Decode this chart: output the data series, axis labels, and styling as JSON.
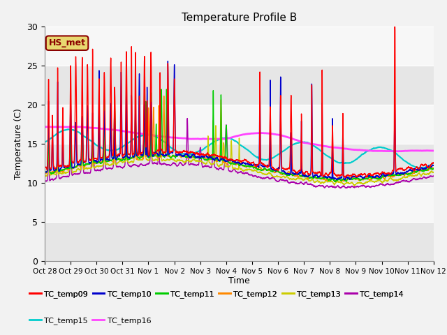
{
  "title": "Temperature Profile B",
  "xlabel": "Time",
  "ylabel": "Temperature (C)",
  "ylim": [
    0,
    30
  ],
  "n_days": 15,
  "background_color": "#f2f2f2",
  "plot_bg_color": "#f2f2f2",
  "annotation_text": "HS_met",
  "annotation_color": "#8B0000",
  "annotation_bg": "#e8d870",
  "annotation_border": "#8B0000",
  "xtick_labels": [
    "Oct 28",
    "Oct 29",
    "Oct 30",
    "Oct 31",
    "Nov 1",
    "Nov 2",
    "Nov 3",
    "Nov 4",
    "Nov 5",
    "Nov 6",
    "Nov 7",
    "Nov 8",
    "Nov 9",
    "Nov 10",
    "Nov 11",
    "Nov 12"
  ],
  "series_order": [
    "TC_temp09",
    "TC_temp10",
    "TC_temp11",
    "TC_temp12",
    "TC_temp13",
    "TC_temp14",
    "TC_temp15",
    "TC_temp16"
  ],
  "series": {
    "TC_temp09": {
      "color": "#ff0000",
      "lw": 1.0
    },
    "TC_temp10": {
      "color": "#0000cc",
      "lw": 1.0
    },
    "TC_temp11": {
      "color": "#00cc00",
      "lw": 1.0
    },
    "TC_temp12": {
      "color": "#ff8800",
      "lw": 1.0
    },
    "TC_temp13": {
      "color": "#cccc00",
      "lw": 1.0
    },
    "TC_temp14": {
      "color": "#aa00aa",
      "lw": 1.0
    },
    "TC_temp15": {
      "color": "#00cccc",
      "lw": 1.5
    },
    "TC_temp16": {
      "color": "#ff44ff",
      "lw": 2.0
    }
  },
  "legend_fontsize": 8,
  "title_fontsize": 11,
  "grid_color": "#ffffff",
  "band_color": "#dcdcdc"
}
